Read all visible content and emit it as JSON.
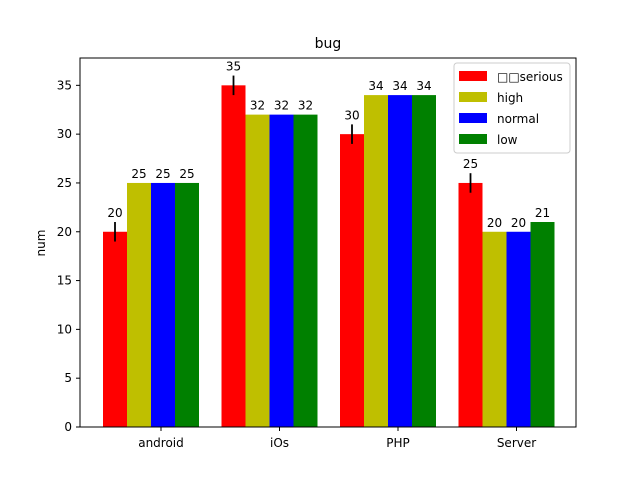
{
  "chart_data": {
    "type": "bar",
    "title": "bug",
    "xlabel": "",
    "ylabel": "num",
    "categories": [
      "android",
      "iOs",
      "PHP",
      "Server"
    ],
    "ylim": [
      0,
      37.8
    ],
    "yticks": [
      0,
      5,
      10,
      15,
      20,
      25,
      30,
      35
    ],
    "grid": false,
    "legend_position": "top-right",
    "series": [
      {
        "name": "□□serious",
        "color": "#ff0000",
        "values": [
          20,
          35,
          30,
          25
        ],
        "error": [
          1,
          1,
          1,
          1
        ]
      },
      {
        "name": "high",
        "color": "#bfbf00",
        "values": [
          25,
          32,
          34,
          20
        ]
      },
      {
        "name": "normal",
        "color": "#0000ff",
        "values": [
          25,
          32,
          34,
          20
        ]
      },
      {
        "name": "low",
        "color": "#008000",
        "values": [
          25,
          32,
          34,
          21
        ]
      }
    ]
  }
}
